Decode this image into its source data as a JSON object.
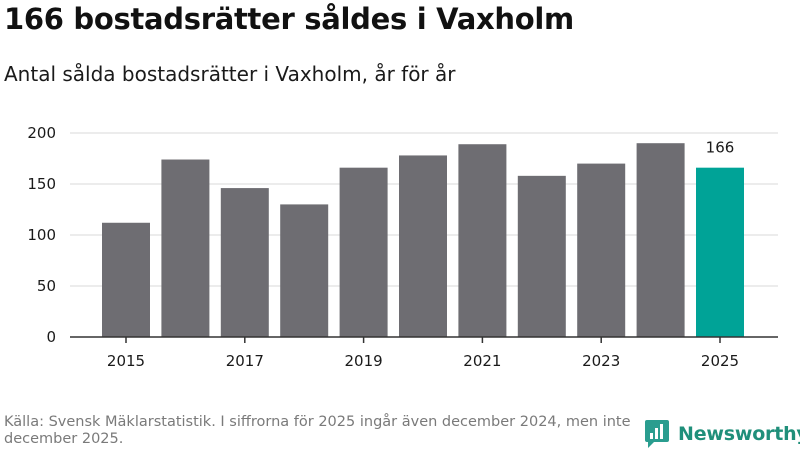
{
  "title": "166 bostadsrätter såldes i Vaxholm",
  "subtitle": "Antal sålda bostadsrätter i Vaxholm, år för år",
  "footer": "Källa: Svensk Mäklarstatistik. I siffrorna för 2025 ingår även december 2024, men inte december 2025.",
  "brand": {
    "name": "Newsworthy",
    "icon": "newsworthy-logo-icon",
    "color": "#2a9d8f"
  },
  "colors": {
    "bar": "#6e6d72",
    "highlight": "#00a397",
    "grid": "#d9d9d9",
    "axis": "#333333"
  },
  "chart_data": {
    "type": "bar",
    "title": "Antal sålda bostadsrätter i Vaxholm, år för år",
    "categories": [
      "2015",
      "2016",
      "2017",
      "2018",
      "2019",
      "2020",
      "2021",
      "2022",
      "2023",
      "2024",
      "2025"
    ],
    "values": [
      112,
      174,
      146,
      130,
      166,
      178,
      189,
      158,
      170,
      190,
      166
    ],
    "x_tick_labels": [
      "2015",
      "2017",
      "2019",
      "2021",
      "2023",
      "2025"
    ],
    "y_ticks": [
      0,
      50,
      100,
      150,
      200
    ],
    "ylim": [
      0,
      200
    ],
    "grid": true,
    "highlight_index": 10,
    "data_labels": [
      {
        "index": 10,
        "text": "166"
      }
    ],
    "xlabel": "",
    "ylabel": ""
  }
}
